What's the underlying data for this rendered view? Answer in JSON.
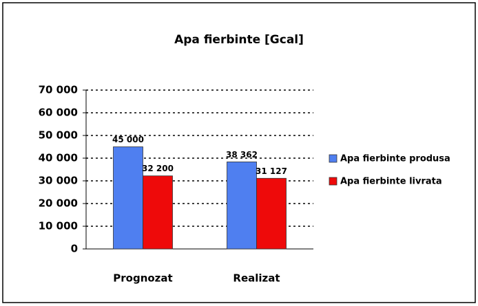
{
  "chart_data": {
    "type": "bar",
    "title": "Apa fierbinte [Gcal]",
    "categories": [
      "Prognozat",
      "Realizat"
    ],
    "series": [
      {
        "name": "Apa fierbinte produsa",
        "color": "#4f7ff0",
        "values": [
          45000,
          38362
        ],
        "value_labels": [
          "45 000",
          "38 362"
        ]
      },
      {
        "name": "Apa fierbinte livrata",
        "color": "#ee0a0a",
        "values": [
          32200,
          31127
        ],
        "value_labels": [
          "32 200",
          "31 127"
        ]
      }
    ],
    "ylim": [
      0,
      70000
    ],
    "yticks": [
      {
        "value": 0,
        "label": "0"
      },
      {
        "value": 10000,
        "label": "10 000"
      },
      {
        "value": 20000,
        "label": "20 000"
      },
      {
        "value": 30000,
        "label": "30 000"
      },
      {
        "value": 40000,
        "label": "40 000"
      },
      {
        "value": 50000,
        "label": "50 000"
      },
      {
        "value": 60000,
        "label": "60 000"
      },
      {
        "value": 70000,
        "label": "70 000"
      }
    ],
    "grid": true,
    "legend": "right"
  }
}
